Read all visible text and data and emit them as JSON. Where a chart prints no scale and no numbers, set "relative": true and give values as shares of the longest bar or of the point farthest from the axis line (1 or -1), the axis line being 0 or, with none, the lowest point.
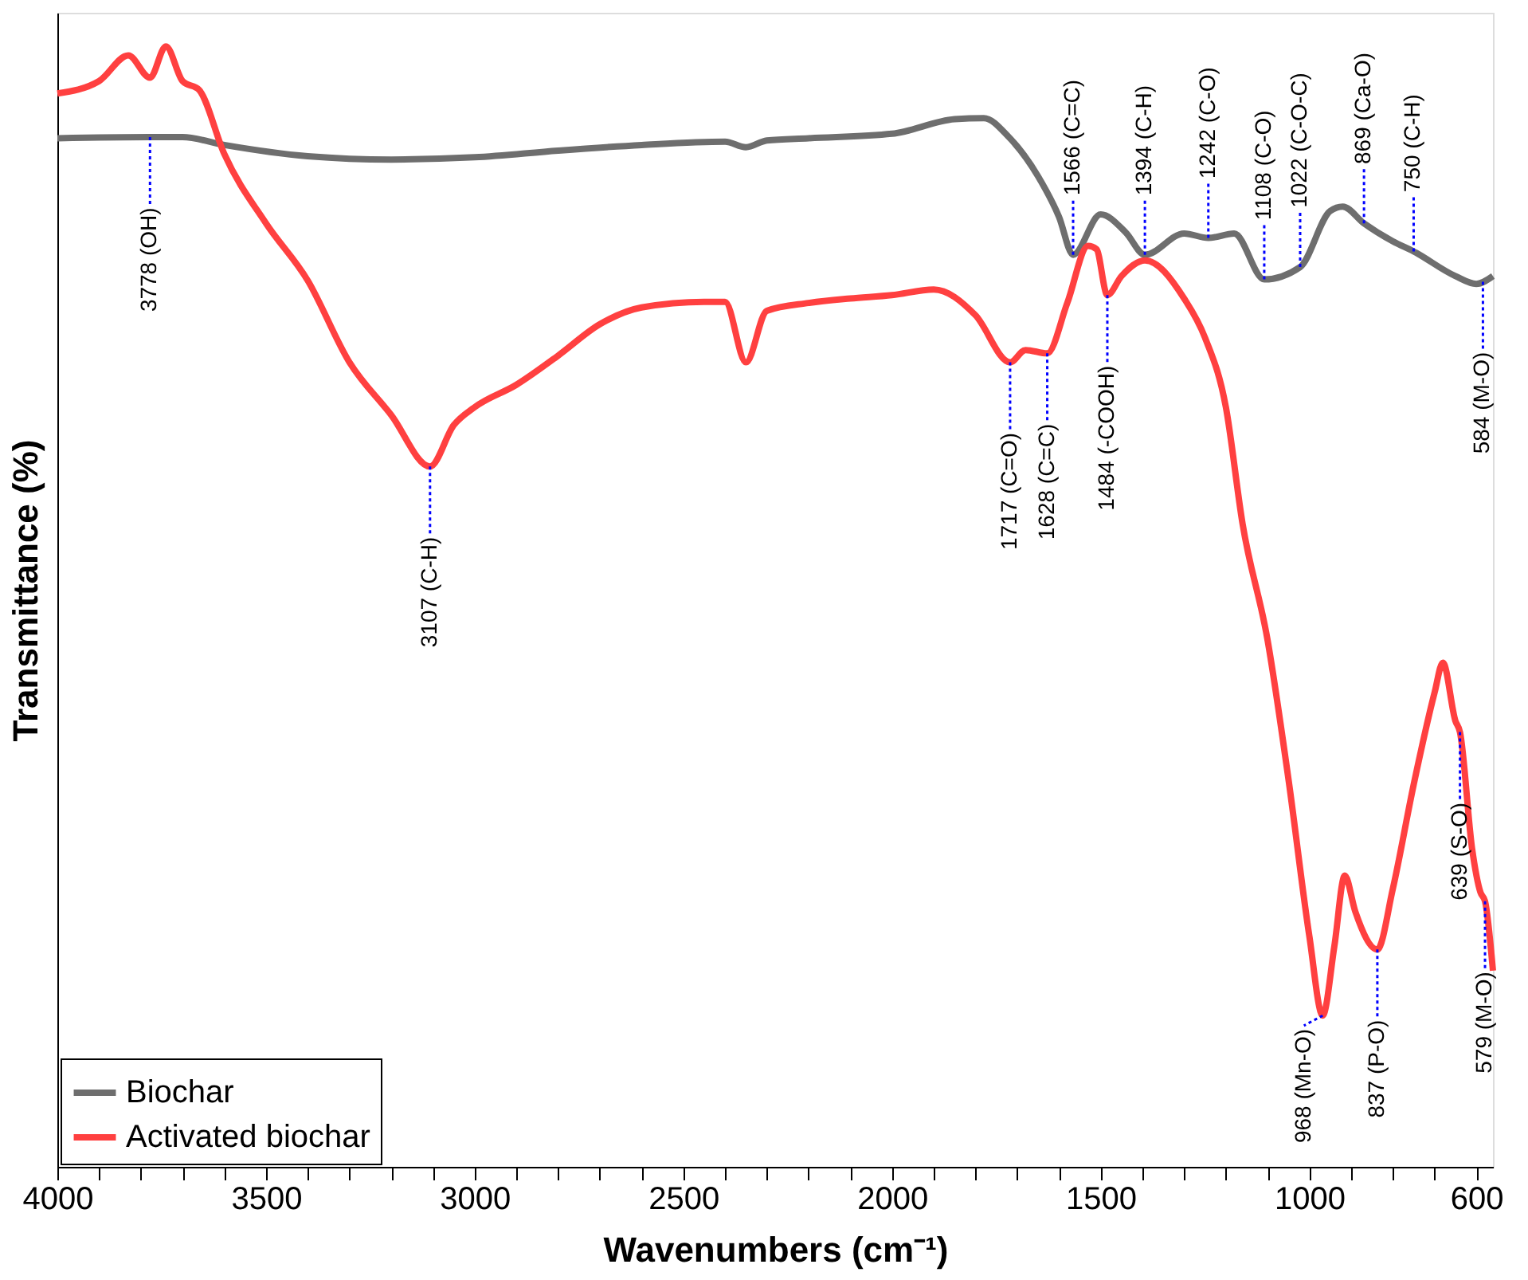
{
  "chart_data": {
    "type": "line",
    "xlabel": "Wavenumbers (cm⁻¹)",
    "ylabel": "Transmittance (%)",
    "relative": true,
    "xlim": [
      4000,
      560
    ],
    "xticks": [
      4000,
      {
        "value": 3900,
        "label": null
      },
      {
        "value": 3800,
        "label": null
      },
      {
        "value": 3700,
        "label": null
      },
      {
        "value": 3600,
        "label": null
      },
      3500,
      {
        "value": 3400,
        "label": null
      },
      {
        "value": 3300,
        "label": null
      },
      {
        "value": 3200,
        "label": null
      },
      {
        "value": 3100,
        "label": null
      },
      3000,
      {
        "value": 2900,
        "label": null
      },
      {
        "value": 2800,
        "label": null
      },
      {
        "value": 2700,
        "label": null
      },
      {
        "value": 2600,
        "label": null
      },
      2500,
      {
        "value": 2400,
        "label": null
      },
      {
        "value": 2300,
        "label": null
      },
      {
        "value": 2200,
        "label": null
      },
      {
        "value": 2100,
        "label": null
      },
      2000,
      {
        "value": 1900,
        "label": null
      },
      {
        "value": 1800,
        "label": null
      },
      {
        "value": 1700,
        "label": null
      },
      {
        "value": 1600,
        "label": null
      },
      1500,
      {
        "value": 1400,
        "label": null
      },
      {
        "value": 1300,
        "label": null
      },
      {
        "value": 1200,
        "label": null
      },
      {
        "value": 1100,
        "label": null
      },
      1000,
      {
        "value": 900,
        "label": null
      },
      {
        "value": 800,
        "label": null
      },
      {
        "value": 700,
        "label": null
      },
      600
    ],
    "tick_labels": "x",
    "grid": false,
    "legend": "bottom left",
    "line_style": "solid",
    "series": [
      {
        "name": "Biochar",
        "color": "#6e6e6e",
        "x": [
          4000,
          3778,
          3700,
          3600,
          3400,
          3200,
          3000,
          2800,
          2600,
          2400,
          2350,
          2300,
          2200,
          2000,
          1850,
          1780,
          1720,
          1650,
          1600,
          1566,
          1500,
          1440,
          1394,
          1300,
          1242,
          1180,
          1108,
          1022,
          950,
          920,
          869,
          800,
          750,
          650,
          600,
          560
        ],
        "values": [
          0.918,
          0.919,
          0.919,
          0.912,
          0.902,
          0.899,
          0.901,
          0.907,
          0.912,
          0.915,
          0.91,
          0.916,
          0.918,
          0.922,
          0.935,
          0.936,
          0.919,
          0.884,
          0.848,
          0.814,
          0.85,
          0.834,
          0.814,
          0.833,
          0.829,
          0.833,
          0.792,
          0.803,
          0.853,
          0.857,
          0.842,
          0.826,
          0.817,
          0.795,
          0.788,
          0.795
        ]
      },
      {
        "name": "Activated biochar",
        "color": "#ff4040",
        "x": [
          4000,
          3900,
          3830,
          3778,
          3740,
          3700,
          3660,
          3600,
          3500,
          3400,
          3300,
          3200,
          3107,
          3050,
          3000,
          2900,
          2800,
          2700,
          2600,
          2450,
          2400,
          2350,
          2300,
          2200,
          2100,
          2000,
          1900,
          1800,
          1717,
          1680,
          1628,
          1580,
          1530,
          1510,
          1484,
          1450,
          1394,
          1300,
          1250,
          1200,
          1160,
          1100,
          1050,
          1000,
          968,
          940,
          915,
          890,
          837,
          800,
          750,
          700,
          680,
          650,
          639,
          610,
          590,
          579,
          560
        ],
        "values": [
          0.958,
          0.969,
          0.992,
          0.972,
          1.0,
          0.969,
          0.961,
          0.904,
          0.842,
          0.791,
          0.718,
          0.671,
          0.625,
          0.662,
          0.678,
          0.698,
          0.724,
          0.752,
          0.767,
          0.772,
          0.772,
          0.718,
          0.764,
          0.771,
          0.775,
          0.778,
          0.783,
          0.76,
          0.718,
          0.729,
          0.726,
          0.771,
          0.822,
          0.819,
          0.778,
          0.795,
          0.809,
          0.775,
          0.74,
          0.678,
          0.574,
          0.47,
          0.346,
          0.206,
          0.135,
          0.197,
          0.26,
          0.228,
          0.194,
          0.248,
          0.341,
          0.423,
          0.45,
          0.398,
          0.388,
          0.284,
          0.245,
          0.237,
          0.175
        ]
      }
    ],
    "annotations": [
      {
        "text": "3778 (OH)",
        "x": 3778,
        "y": 0.919
      },
      {
        "text": "3107 (C-H)",
        "x": 3107,
        "y": 0.625
      },
      {
        "text": "1717 (C=O)",
        "x": 1717,
        "y": 0.718
      },
      {
        "text": "1628 (C=C)",
        "x": 1628,
        "y": 0.726
      },
      {
        "text": "1484 (-COOH)",
        "x": 1484,
        "y": 0.778
      },
      {
        "text": "1566 (C=C)",
        "x": 1566,
        "y": 0.814
      },
      {
        "text": "1394 (C-H)",
        "x": 1394,
        "y": 0.814
      },
      {
        "text": "1242 (C-O)",
        "x": 1242,
        "y": 0.829
      },
      {
        "text": "1108 (C-O)",
        "x": 1108,
        "y": 0.792
      },
      {
        "text": "1022 (C-O-C)",
        "x": 1022,
        "y": 0.803
      },
      {
        "text": "869 (Ca-O)",
        "x": 869,
        "y": 0.842
      },
      {
        "text": "750 (C-H)",
        "x": 750,
        "y": 0.817
      },
      {
        "text": "584 (M-O)",
        "x": 584,
        "y": 0.79
      },
      {
        "text": "968 (Mn-O)",
        "x": 968,
        "y": 0.135
      },
      {
        "text": "837 (P-O)",
        "x": 837,
        "y": 0.194
      },
      {
        "text": "639 (S-O)",
        "x": 639,
        "y": 0.388
      },
      {
        "text": "579 (M-O)",
        "x": 579,
        "y": 0.237
      }
    ]
  }
}
